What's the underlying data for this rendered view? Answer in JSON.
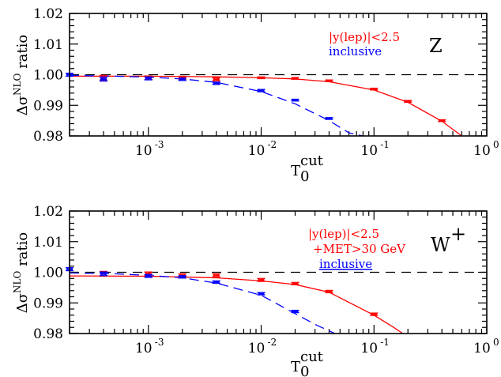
{
  "chart_data": [
    {
      "type": "line",
      "panel_label": "Z",
      "xlabel": "T0cut",
      "ylabel": "Δσ^NLO ratio",
      "xscale": "log",
      "xlim": [
        0.0002,
        1
      ],
      "ylim": [
        0.98,
        1.02
      ],
      "x_tick_labels": [
        "10^-3",
        "10^-2",
        "10^-1",
        "10^0"
      ],
      "y_tick_labels": [
        "0.98",
        "0.99",
        "1.00",
        "1.01",
        "1.02"
      ],
      "reference_line": 1.0,
      "legend_placement": "top-right",
      "legend_lines": [
        "|y(lep)|<2.5"
      ],
      "series": [
        {
          "name": "|y(lep)|<2.5",
          "color": "#ff0000",
          "points": [
            {
              "x": 0.0004,
              "y": 0.999,
              "err": 0.0008
            },
            {
              "x": 0.001,
              "y": 0.999,
              "err": 0.0006
            },
            {
              "x": 0.002,
              "y": 0.999,
              "err": 0.0005
            },
            {
              "x": 0.004,
              "y": 0.9985,
              "err": 0.0005
            },
            {
              "x": 0.01,
              "y": 0.999,
              "err": 0.0003
            },
            {
              "x": 0.02,
              "y": 0.9988,
              "err": 0.0003
            },
            {
              "x": 0.04,
              "y": 0.998,
              "err": 0.0003
            },
            {
              "x": 0.1,
              "y": 0.9953,
              "err": 0.0003
            },
            {
              "x": 0.2,
              "y": 0.9913,
              "err": 0.0003
            },
            {
              "x": 0.4,
              "y": 0.985,
              "err": 0.0003
            }
          ],
          "curve": {
            "style": "solid",
            "x": [
              0.0002,
              0.001,
              0.004,
              0.01,
              0.02,
              0.04,
              0.1,
              0.2,
              0.4,
              0.6
            ],
            "y": [
              0.9995,
              0.9995,
              0.9993,
              0.999,
              0.9986,
              0.9977,
              0.995,
              0.991,
              0.9848,
              0.98
            ]
          }
        },
        {
          "name": "inclusive",
          "color": "#0000ff",
          "points": [
            {
              "x": 0.0002,
              "y": 1.0,
              "err": 0.0005
            },
            {
              "x": 0.0004,
              "y": 0.9985,
              "err": 0.0006
            },
            {
              "x": 0.001,
              "y": 0.9988,
              "err": 0.0005
            },
            {
              "x": 0.002,
              "y": 0.9985,
              "err": 0.0004
            },
            {
              "x": 0.004,
              "y": 0.9972,
              "err": 0.0004
            },
            {
              "x": 0.01,
              "y": 0.9948,
              "err": 0.0004
            },
            {
              "x": 0.02,
              "y": 0.9917,
              "err": 0.0003
            },
            {
              "x": 0.04,
              "y": 0.9857,
              "err": 0.0003
            }
          ],
          "curve": {
            "style": "dashed",
            "x": [
              0.0002,
              0.0005,
              0.001,
              0.002,
              0.004,
              0.01,
              0.02,
              0.04,
              0.06,
              0.08
            ],
            "y": [
              0.9998,
              0.9995,
              0.9992,
              0.9986,
              0.9975,
              0.9945,
              0.9905,
              0.985,
              0.981,
              0.978
            ]
          }
        }
      ]
    },
    {
      "type": "line",
      "panel_label": "W+",
      "xlabel": "T0cut",
      "ylabel": "Δσ^NLO ratio",
      "xscale": "log",
      "xlim": [
        0.0002,
        1
      ],
      "ylim": [
        0.98,
        1.02
      ],
      "x_tick_labels": [
        "10^-3",
        "10^-2",
        "10^-1",
        "10^0"
      ],
      "y_tick_labels": [
        "0.98",
        "0.99",
        "1.00",
        "1.01",
        "1.02"
      ],
      "reference_line": 1.0,
      "legend_placement": "top-right",
      "legend_lines": [
        "|y(lep)|<2.5",
        "+MET>30 GeV"
      ],
      "series": [
        {
          "name": "|y(lep)|<2.5 +MET>30 GeV",
          "color": "#ff0000",
          "points": [
            {
              "x": 0.0004,
              "y": 0.9995,
              "err": 0.0008
            },
            {
              "x": 0.001,
              "y": 0.9995,
              "err": 0.0006
            },
            {
              "x": 0.002,
              "y": 0.999,
              "err": 0.0005
            },
            {
              "x": 0.004,
              "y": 0.999,
              "err": 0.0005
            },
            {
              "x": 0.01,
              "y": 0.9975,
              "err": 0.0005
            },
            {
              "x": 0.02,
              "y": 0.9963,
              "err": 0.0004
            },
            {
              "x": 0.04,
              "y": 0.9937,
              "err": 0.0004
            },
            {
              "x": 0.1,
              "y": 0.9863,
              "err": 0.0004
            }
          ],
          "curve": {
            "style": "solid",
            "x": [
              0.0002,
              0.001,
              0.004,
              0.01,
              0.02,
              0.04,
              0.1,
              0.15,
              0.18
            ],
            "y": [
              0.9988,
              0.9987,
              0.9982,
              0.9972,
              0.996,
              0.9935,
              0.986,
              0.982,
              0.98
            ]
          }
        },
        {
          "name": "inclusive",
          "color": "#0000ff",
          "points": [
            {
              "x": 0.0002,
              "y": 1.001,
              "err": 0.0005
            },
            {
              "x": 0.0004,
              "y": 0.9995,
              "err": 0.0006
            },
            {
              "x": 0.001,
              "y": 0.9988,
              "err": 0.0005
            },
            {
              "x": 0.002,
              "y": 0.9985,
              "err": 0.0004
            },
            {
              "x": 0.004,
              "y": 0.9968,
              "err": 0.0004
            },
            {
              "x": 0.01,
              "y": 0.993,
              "err": 0.0004
            },
            {
              "x": 0.02,
              "y": 0.9872,
              "err": 0.0004
            }
          ],
          "curve": {
            "style": "dashed",
            "x": [
              0.0002,
              0.0005,
              0.001,
              0.002,
              0.004,
              0.01,
              0.02,
              0.03,
              0.045
            ],
            "y": [
              0.9998,
              0.9995,
              0.999,
              0.9982,
              0.9965,
              0.9925,
              0.9865,
              0.983,
              0.978
            ]
          }
        }
      ]
    }
  ]
}
